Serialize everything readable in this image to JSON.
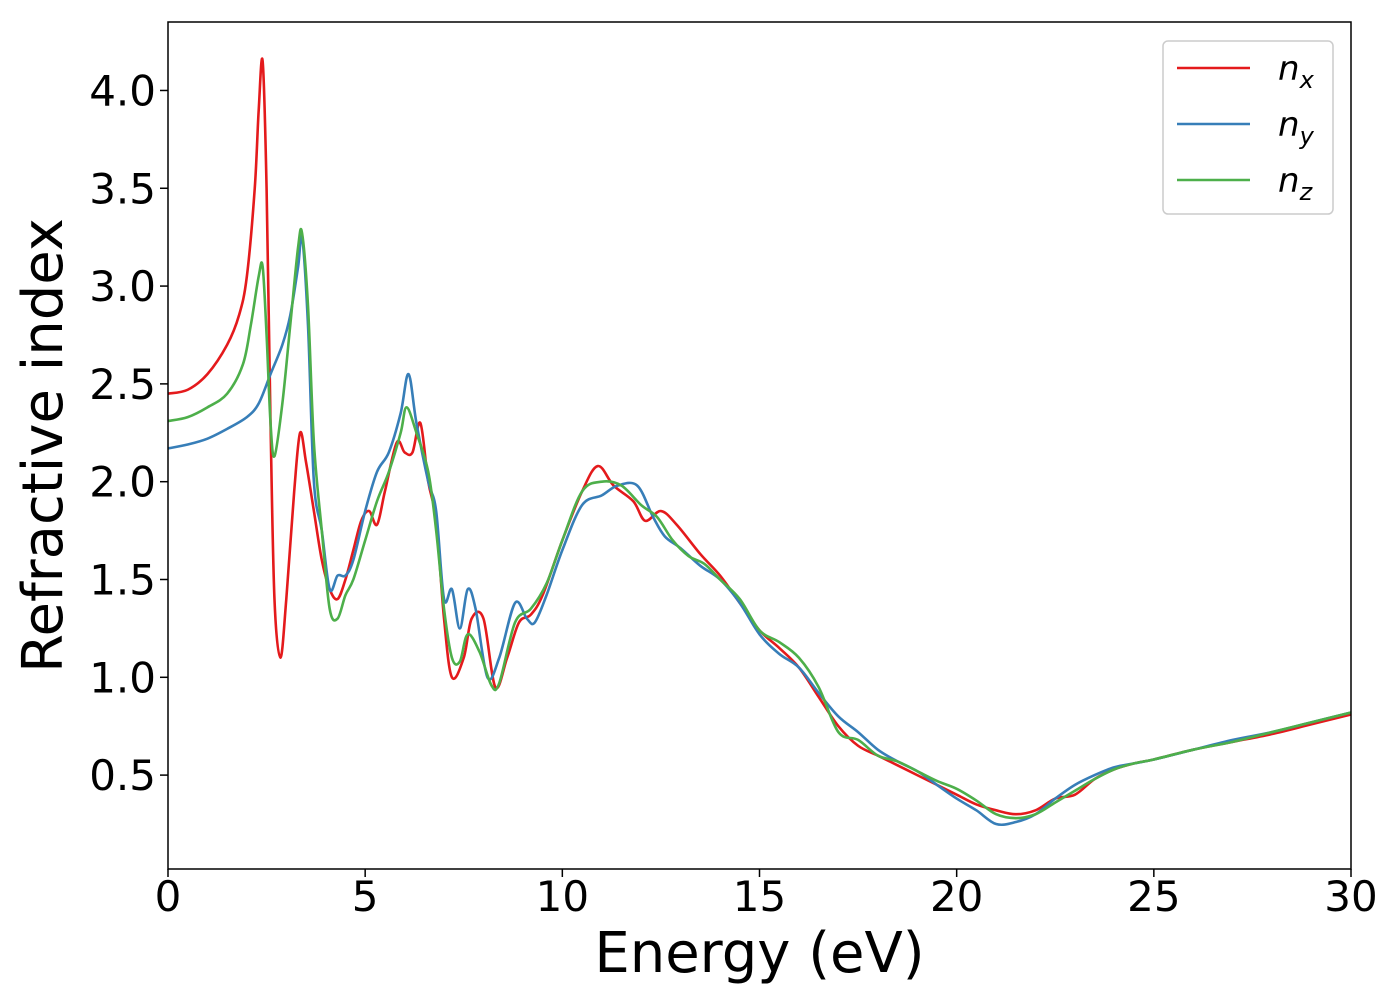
{
  "chart_data": {
    "type": "line",
    "xlabel": "Energy (eV)",
    "ylabel": "Refractive index",
    "xlim": [
      0,
      30
    ],
    "ylim": [
      0.02,
      4.35
    ],
    "xticks": [
      0,
      5,
      10,
      15,
      20,
      25,
      30
    ],
    "xtick_labels": [
      "0",
      "5",
      "10",
      "15",
      "20",
      "25",
      "30"
    ],
    "yticks": [
      0.5,
      1.0,
      1.5,
      2.0,
      2.5,
      3.0,
      3.5,
      4.0
    ],
    "ytick_labels": [
      "0.5",
      "1.0",
      "1.5",
      "2.0",
      "2.5",
      "3.0",
      "3.5",
      "4.0"
    ],
    "grid": false,
    "legend_position": "top-right",
    "series": [
      {
        "name": "n",
        "sub": "x",
        "color": "#e41a1c",
        "points": [
          [
            0,
            2.45
          ],
          [
            0.5,
            2.47
          ],
          [
            1,
            2.55
          ],
          [
            1.5,
            2.7
          ],
          [
            1.8,
            2.85
          ],
          [
            2.0,
            3.05
          ],
          [
            2.2,
            3.5
          ],
          [
            2.3,
            3.9
          ],
          [
            2.4,
            4.15
          ],
          [
            2.5,
            3.5
          ],
          [
            2.6,
            2.3
          ],
          [
            2.7,
            1.4
          ],
          [
            2.85,
            1.1
          ],
          [
            3.0,
            1.4
          ],
          [
            3.2,
            1.95
          ],
          [
            3.35,
            2.25
          ],
          [
            3.5,
            2.1
          ],
          [
            3.7,
            1.85
          ],
          [
            3.9,
            1.6
          ],
          [
            4.1,
            1.45
          ],
          [
            4.3,
            1.4
          ],
          [
            4.5,
            1.5
          ],
          [
            4.7,
            1.65
          ],
          [
            4.9,
            1.8
          ],
          [
            5.1,
            1.85
          ],
          [
            5.3,
            1.78
          ],
          [
            5.5,
            1.95
          ],
          [
            5.8,
            2.2
          ],
          [
            6.0,
            2.15
          ],
          [
            6.2,
            2.15
          ],
          [
            6.4,
            2.3
          ],
          [
            6.6,
            2.0
          ],
          [
            6.8,
            1.8
          ],
          [
            7.0,
            1.3
          ],
          [
            7.2,
            1.0
          ],
          [
            7.5,
            1.1
          ],
          [
            7.7,
            1.3
          ],
          [
            8.0,
            1.3
          ],
          [
            8.3,
            0.95
          ],
          [
            8.6,
            1.1
          ],
          [
            8.9,
            1.28
          ],
          [
            9.2,
            1.32
          ],
          [
            9.5,
            1.42
          ],
          [
            10.0,
            1.7
          ],
          [
            10.5,
            1.95
          ],
          [
            10.9,
            2.08
          ],
          [
            11.3,
            1.98
          ],
          [
            11.8,
            1.9
          ],
          [
            12.1,
            1.8
          ],
          [
            12.5,
            1.85
          ],
          [
            12.9,
            1.78
          ],
          [
            13.5,
            1.63
          ],
          [
            14.0,
            1.52
          ],
          [
            14.5,
            1.38
          ],
          [
            15.0,
            1.24
          ],
          [
            15.5,
            1.15
          ],
          [
            16.0,
            1.05
          ],
          [
            16.5,
            0.9
          ],
          [
            17.0,
            0.75
          ],
          [
            17.5,
            0.65
          ],
          [
            18.0,
            0.6
          ],
          [
            18.5,
            0.55
          ],
          [
            19.0,
            0.5
          ],
          [
            19.5,
            0.45
          ],
          [
            20.0,
            0.4
          ],
          [
            20.5,
            0.35
          ],
          [
            21.0,
            0.32
          ],
          [
            21.5,
            0.3
          ],
          [
            22.0,
            0.32
          ],
          [
            22.5,
            0.38
          ],
          [
            23.0,
            0.4
          ],
          [
            23.5,
            0.48
          ],
          [
            24.0,
            0.53
          ],
          [
            24.5,
            0.56
          ],
          [
            25.0,
            0.58
          ],
          [
            26.0,
            0.63
          ],
          [
            27.0,
            0.67
          ],
          [
            28.0,
            0.71
          ],
          [
            29.0,
            0.76
          ],
          [
            30.0,
            0.81
          ]
        ]
      },
      {
        "name": "n",
        "sub": "y",
        "color": "#377eb8",
        "points": [
          [
            0,
            2.17
          ],
          [
            0.5,
            2.19
          ],
          [
            1.0,
            2.22
          ],
          [
            1.5,
            2.27
          ],
          [
            2.0,
            2.33
          ],
          [
            2.3,
            2.4
          ],
          [
            2.6,
            2.55
          ],
          [
            2.9,
            2.7
          ],
          [
            3.1,
            2.85
          ],
          [
            3.3,
            3.1
          ],
          [
            3.4,
            3.25
          ],
          [
            3.55,
            2.8
          ],
          [
            3.7,
            2.0
          ],
          [
            3.9,
            1.75
          ],
          [
            4.1,
            1.45
          ],
          [
            4.3,
            1.52
          ],
          [
            4.5,
            1.52
          ],
          [
            4.7,
            1.6
          ],
          [
            5.0,
            1.85
          ],
          [
            5.3,
            2.05
          ],
          [
            5.6,
            2.15
          ],
          [
            5.9,
            2.35
          ],
          [
            6.1,
            2.55
          ],
          [
            6.3,
            2.3
          ],
          [
            6.6,
            2.0
          ],
          [
            6.8,
            1.85
          ],
          [
            7.0,
            1.4
          ],
          [
            7.2,
            1.45
          ],
          [
            7.4,
            1.25
          ],
          [
            7.6,
            1.45
          ],
          [
            7.8,
            1.35
          ],
          [
            8.1,
            1.0
          ],
          [
            8.4,
            1.1
          ],
          [
            8.8,
            1.38
          ],
          [
            9.1,
            1.3
          ],
          [
            9.3,
            1.28
          ],
          [
            9.6,
            1.42
          ],
          [
            10.0,
            1.65
          ],
          [
            10.5,
            1.88
          ],
          [
            11.0,
            1.93
          ],
          [
            11.4,
            1.98
          ],
          [
            11.9,
            1.98
          ],
          [
            12.3,
            1.82
          ],
          [
            12.6,
            1.72
          ],
          [
            13.0,
            1.66
          ],
          [
            13.5,
            1.57
          ],
          [
            14.0,
            1.5
          ],
          [
            14.5,
            1.38
          ],
          [
            15.0,
            1.22
          ],
          [
            15.5,
            1.12
          ],
          [
            16.0,
            1.05
          ],
          [
            16.5,
            0.92
          ],
          [
            17.0,
            0.8
          ],
          [
            17.5,
            0.72
          ],
          [
            18.0,
            0.63
          ],
          [
            18.5,
            0.57
          ],
          [
            19.0,
            0.52
          ],
          [
            19.5,
            0.45
          ],
          [
            20.0,
            0.38
          ],
          [
            20.5,
            0.32
          ],
          [
            21.0,
            0.25
          ],
          [
            21.5,
            0.26
          ],
          [
            22.0,
            0.3
          ],
          [
            22.5,
            0.38
          ],
          [
            23.0,
            0.45
          ],
          [
            23.5,
            0.5
          ],
          [
            24.0,
            0.54
          ],
          [
            24.5,
            0.56
          ],
          [
            25.0,
            0.58
          ],
          [
            26.0,
            0.63
          ],
          [
            27.0,
            0.68
          ],
          [
            28.0,
            0.72
          ],
          [
            29.0,
            0.77
          ],
          [
            30.0,
            0.82
          ]
        ]
      },
      {
        "name": "n",
        "sub": "z",
        "color": "#4daf4a",
        "points": [
          [
            0,
            2.31
          ],
          [
            0.5,
            2.33
          ],
          [
            1.0,
            2.38
          ],
          [
            1.5,
            2.45
          ],
          [
            1.9,
            2.6
          ],
          [
            2.1,
            2.8
          ],
          [
            2.3,
            3.05
          ],
          [
            2.4,
            3.1
          ],
          [
            2.5,
            2.75
          ],
          [
            2.6,
            2.3
          ],
          [
            2.7,
            2.13
          ],
          [
            2.9,
            2.4
          ],
          [
            3.1,
            2.8
          ],
          [
            3.3,
            3.2
          ],
          [
            3.4,
            3.27
          ],
          [
            3.55,
            2.9
          ],
          [
            3.7,
            2.2
          ],
          [
            3.9,
            1.75
          ],
          [
            4.1,
            1.35
          ],
          [
            4.3,
            1.3
          ],
          [
            4.5,
            1.42
          ],
          [
            4.7,
            1.5
          ],
          [
            5.0,
            1.7
          ],
          [
            5.3,
            1.9
          ],
          [
            5.6,
            2.05
          ],
          [
            5.9,
            2.25
          ],
          [
            6.05,
            2.38
          ],
          [
            6.3,
            2.25
          ],
          [
            6.6,
            2.05
          ],
          [
            6.8,
            1.75
          ],
          [
            7.0,
            1.35
          ],
          [
            7.2,
            1.1
          ],
          [
            7.4,
            1.08
          ],
          [
            7.6,
            1.22
          ],
          [
            7.9,
            1.13
          ],
          [
            8.2,
            0.96
          ],
          [
            8.4,
            0.97
          ],
          [
            8.8,
            1.28
          ],
          [
            9.2,
            1.35
          ],
          [
            9.6,
            1.48
          ],
          [
            10.0,
            1.7
          ],
          [
            10.5,
            1.95
          ],
          [
            11.0,
            2.0
          ],
          [
            11.5,
            1.98
          ],
          [
            12.0,
            1.88
          ],
          [
            12.4,
            1.82
          ],
          [
            12.8,
            1.7
          ],
          [
            13.2,
            1.62
          ],
          [
            13.6,
            1.58
          ],
          [
            14.0,
            1.5
          ],
          [
            14.5,
            1.4
          ],
          [
            15.0,
            1.24
          ],
          [
            15.5,
            1.18
          ],
          [
            16.0,
            1.1
          ],
          [
            16.5,
            0.95
          ],
          [
            17.0,
            0.72
          ],
          [
            17.5,
            0.68
          ],
          [
            18.0,
            0.6
          ],
          [
            18.5,
            0.57
          ],
          [
            19.0,
            0.52
          ],
          [
            19.5,
            0.47
          ],
          [
            20.0,
            0.43
          ],
          [
            20.5,
            0.37
          ],
          [
            21.0,
            0.3
          ],
          [
            21.5,
            0.28
          ],
          [
            22.0,
            0.3
          ],
          [
            22.5,
            0.36
          ],
          [
            23.0,
            0.42
          ],
          [
            23.5,
            0.48
          ],
          [
            24.0,
            0.53
          ],
          [
            24.5,
            0.56
          ],
          [
            25.0,
            0.58
          ],
          [
            26.0,
            0.63
          ],
          [
            27.0,
            0.67
          ],
          [
            28.0,
            0.72
          ],
          [
            29.0,
            0.77
          ],
          [
            30.0,
            0.82
          ]
        ]
      }
    ]
  }
}
